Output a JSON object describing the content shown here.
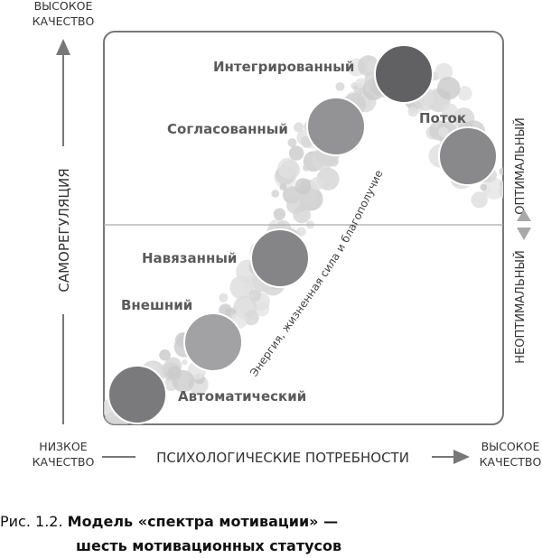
{
  "axes": {
    "y_top": [
      "ВЫСОКОЕ",
      "КАЧЕСТВО"
    ],
    "y_label": "САМОРЕГУЛЯЦИЯ",
    "x_left": [
      "НИЗКОЕ",
      "КАЧЕСТВО"
    ],
    "x_label": "ПСИХОЛОГИЧЕСКИЕ ПОТРЕБНОСТИ",
    "x_right": [
      "ВЫСОКОЕ",
      "КАЧЕСТВО"
    ],
    "right_upper": "ОПТИМАЛЬНЫЙ",
    "right_lower": "НЕОПТИМАЛЬНЫЙ"
  },
  "curve_label": "Энергия, жизненная сила и благополучие",
  "statuses": [
    {
      "label": "Автоматический",
      "color": "#7a7a7c"
    },
    {
      "label": "Внешний",
      "color": "#a2a2a4"
    },
    {
      "label": "Навязанный",
      "color": "#858587"
    },
    {
      "label": "Согласованный",
      "color": "#939395"
    },
    {
      "label": "Интегрированный",
      "color": "#616163"
    },
    {
      "label": "Поток",
      "color": "#89898b"
    }
  ],
  "caption": {
    "prefix": "Рис. 1.2.",
    "line1": "Модель «спектра мотивации» —",
    "line2": "шесть мотивационных статусов"
  }
}
